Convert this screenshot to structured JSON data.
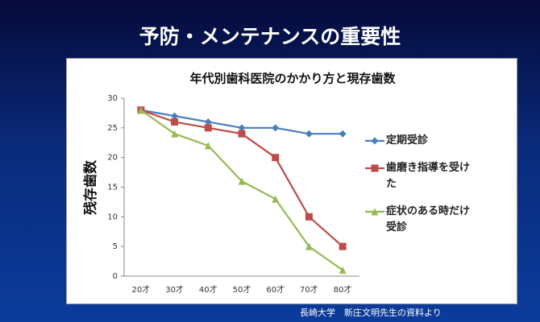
{
  "slide": {
    "title": "予防・メンテナンスの重要性",
    "source": "長崎大学　新庄文明先生の資料より"
  },
  "chart_data": {
    "type": "line",
    "title": "年代別歯科医院のかかり方と現存歯数",
    "y_label": "残存歯数",
    "categories": [
      "20才",
      "30才",
      "40才",
      "50才",
      "60才",
      "70才",
      "80才"
    ],
    "series": [
      {
        "name": "定期受診",
        "color": "#4a7ebb",
        "marker": "diamond",
        "values": [
          28,
          27,
          26,
          25,
          25,
          24,
          24
        ]
      },
      {
        "name": "歯磨き指導を受けた",
        "color": "#be4b48",
        "marker": "square",
        "values": [
          28,
          26,
          25,
          24,
          20,
          10,
          5
        ]
      },
      {
        "name": "症状のある時だけ受診",
        "color": "#98b954",
        "marker": "triangle",
        "values": [
          28,
          24,
          22,
          16,
          13,
          5,
          1
        ]
      }
    ],
    "ylim": [
      0,
      30
    ],
    "yticks": [
      0,
      5,
      10,
      15,
      20,
      25,
      30
    ],
    "grid": false,
    "legend": "right"
  }
}
